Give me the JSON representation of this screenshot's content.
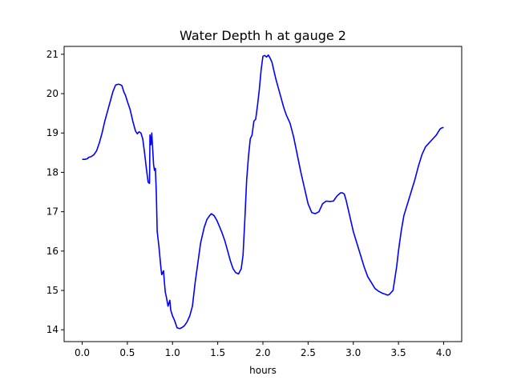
{
  "chart_data": {
    "type": "line",
    "title": "Water Depth h at gauge 2",
    "xlabel": "hours",
    "ylabel": "",
    "xlim": [
      -0.2,
      4.2
    ],
    "ylim": [
      13.7,
      21.2
    ],
    "xticks": [
      0.0,
      0.5,
      1.0,
      1.5,
      2.0,
      2.5,
      3.0,
      3.5,
      4.0
    ],
    "xtick_labels": [
      "0.0",
      "0.5",
      "1.0",
      "1.5",
      "2.0",
      "2.5",
      "3.0",
      "3.5",
      "4.0"
    ],
    "yticks": [
      14,
      15,
      16,
      17,
      18,
      19,
      20,
      21
    ],
    "ytick_labels": [
      "14",
      "15",
      "16",
      "17",
      "18",
      "19",
      "20",
      "21"
    ],
    "grid": false,
    "legend": false,
    "series": [
      {
        "color": "#0000ff",
        "x": [
          0.0,
          0.03,
          0.06,
          0.07,
          0.1,
          0.13,
          0.16,
          0.19,
          0.22,
          0.25,
          0.28,
          0.31,
          0.34,
          0.37,
          0.4,
          0.42,
          0.44,
          0.46,
          0.48,
          0.5,
          0.53,
          0.56,
          0.59,
          0.61,
          0.63,
          0.65,
          0.67,
          0.69,
          0.71,
          0.73,
          0.745,
          0.75,
          0.76,
          0.77,
          0.78,
          0.79,
          0.8,
          0.81,
          0.82,
          0.83,
          0.85,
          0.87,
          0.88,
          0.9,
          0.91,
          0.92,
          0.93,
          0.95,
          0.97,
          0.98,
          1.0,
          1.02,
          1.05,
          1.08,
          1.1,
          1.13,
          1.16,
          1.19,
          1.22,
          1.25,
          1.28,
          1.31,
          1.35,
          1.38,
          1.41,
          1.43,
          1.46,
          1.49,
          1.52,
          1.55,
          1.58,
          1.61,
          1.64,
          1.67,
          1.7,
          1.73,
          1.76,
          1.78,
          1.8,
          1.82,
          1.84,
          1.86,
          1.88,
          1.9,
          1.92,
          1.94,
          1.96,
          1.98,
          2.0,
          2.02,
          2.04,
          2.06,
          2.08,
          2.1,
          2.12,
          2.14,
          2.17,
          2.2,
          2.23,
          2.26,
          2.3,
          2.34,
          2.38,
          2.42,
          2.46,
          2.5,
          2.54,
          2.58,
          2.62,
          2.66,
          2.7,
          2.74,
          2.78,
          2.82,
          2.86,
          2.88,
          2.9,
          2.92,
          2.94,
          2.97,
          3.0,
          3.04,
          3.08,
          3.12,
          3.16,
          3.2,
          3.24,
          3.28,
          3.32,
          3.36,
          3.38,
          3.4,
          3.42,
          3.44,
          3.46,
          3.48,
          3.5,
          3.53,
          3.56,
          3.6,
          3.64,
          3.68,
          3.72,
          3.76,
          3.8,
          3.84,
          3.88,
          3.92,
          3.96,
          3.98,
          4.0
        ],
        "values": [
          18.33,
          18.33,
          18.35,
          18.38,
          18.4,
          18.45,
          18.55,
          18.75,
          19.0,
          19.3,
          19.55,
          19.8,
          20.05,
          20.22,
          20.24,
          20.23,
          20.2,
          20.05,
          19.95,
          19.8,
          19.6,
          19.3,
          19.05,
          18.98,
          19.03,
          19.0,
          18.85,
          18.5,
          18.1,
          17.75,
          17.72,
          18.95,
          18.7,
          19.0,
          18.6,
          18.2,
          18.05,
          18.1,
          17.5,
          16.5,
          16.1,
          15.6,
          15.4,
          15.5,
          15.2,
          14.95,
          14.85,
          14.6,
          14.75,
          14.5,
          14.35,
          14.25,
          14.05,
          14.03,
          14.05,
          14.1,
          14.2,
          14.35,
          14.6,
          15.2,
          15.7,
          16.2,
          16.6,
          16.8,
          16.9,
          16.95,
          16.9,
          16.78,
          16.62,
          16.45,
          16.25,
          16.0,
          15.75,
          15.55,
          15.45,
          15.42,
          15.55,
          15.9,
          16.8,
          17.8,
          18.4,
          18.85,
          18.95,
          19.3,
          19.35,
          19.7,
          20.1,
          20.6,
          20.95,
          20.97,
          20.93,
          20.98,
          20.9,
          20.8,
          20.6,
          20.4,
          20.15,
          19.9,
          19.65,
          19.45,
          19.25,
          18.9,
          18.45,
          18.0,
          17.6,
          17.2,
          16.98,
          16.95,
          17.0,
          17.2,
          17.27,
          17.26,
          17.27,
          17.4,
          17.48,
          17.48,
          17.45,
          17.3,
          17.1,
          16.8,
          16.5,
          16.2,
          15.9,
          15.6,
          15.35,
          15.2,
          15.05,
          14.98,
          14.93,
          14.9,
          14.88,
          14.9,
          14.95,
          15.0,
          15.3,
          15.6,
          16.0,
          16.5,
          16.9,
          17.2,
          17.5,
          17.8,
          18.15,
          18.45,
          18.65,
          18.75,
          18.85,
          18.95,
          19.1,
          19.13,
          19.14
        ]
      }
    ]
  }
}
